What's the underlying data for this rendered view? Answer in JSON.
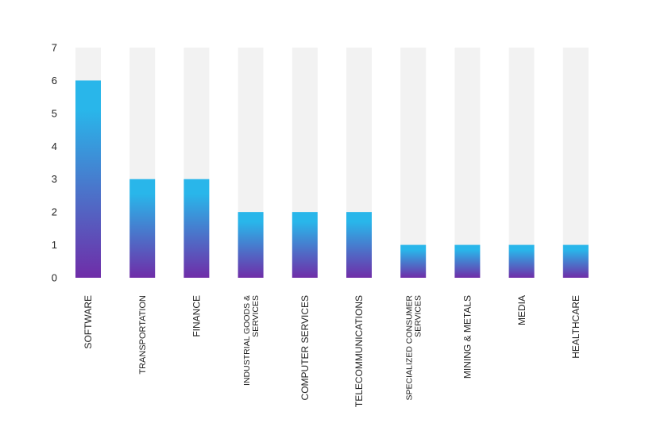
{
  "chart_data": {
    "type": "bar",
    "categories": [
      "SOFTWARE",
      "TRANSPORTATION",
      "FINANCE",
      "INDUSTRIAL GOODS & SERVICES",
      "COMPUTER SERVICES",
      "TELECOMMUNICATIONS",
      "SPECIALIZED CONSUMER SERVICES",
      "MINING & METALS",
      "MEDIA",
      "HEALTHCARE"
    ],
    "category_lines": [
      [
        "SOFTWARE"
      ],
      [
        "TRANSPORTATION"
      ],
      [
        "FINANCE"
      ],
      [
        "INDUSTRIAL GOODS &",
        "SERVICES"
      ],
      [
        "COMPUTER SERVICES"
      ],
      [
        "TELECOMMUNICATIONS"
      ],
      [
        "SPECIALIZED CONSUMER",
        "SERVICES"
      ],
      [
        "MINING & METALS"
      ],
      [
        "MEDIA"
      ],
      [
        "HEALTHCARE"
      ]
    ],
    "values": [
      6,
      3,
      3,
      2,
      2,
      2,
      1,
      1,
      1,
      1
    ],
    "title": "",
    "xlabel": "",
    "ylabel": "",
    "ylim": [
      0,
      7
    ],
    "yticks": [
      0,
      1,
      2,
      3,
      4,
      5,
      6,
      7
    ],
    "grid": false,
    "legend": "none",
    "colors": {
      "track": "#f2f2f2",
      "gradient_top": "#29b6ea",
      "gradient_bottom": "#6f2da8"
    }
  }
}
